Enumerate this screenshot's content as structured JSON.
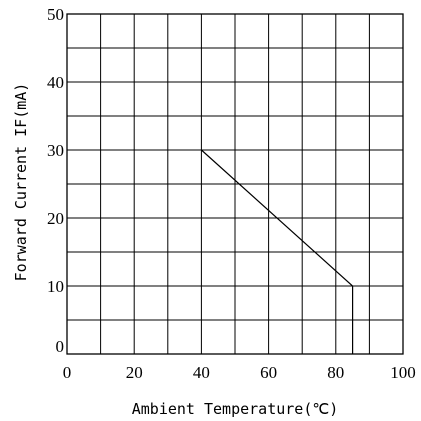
{
  "chart_data": {
    "type": "line",
    "title": "",
    "xlabel": "Ambient Temperature(℃)",
    "ylabel": "Forward Current  IF(mA)",
    "xlim": [
      0,
      100
    ],
    "ylim": [
      0,
      50
    ],
    "x_ticks": [
      0,
      20,
      40,
      60,
      80,
      100
    ],
    "y_ticks": [
      0,
      10,
      20,
      30,
      40,
      50
    ],
    "x_gridlines": [
      0,
      10,
      20,
      30,
      40,
      50,
      60,
      70,
      80,
      90,
      100
    ],
    "y_gridlines": [
      0,
      5,
      10,
      15,
      20,
      25,
      30,
      35,
      40,
      45,
      50
    ],
    "grid": true,
    "legend": "none",
    "series": [
      {
        "x": [
          40,
          85,
          85
        ],
        "y": [
          30,
          10,
          0
        ],
        "color": "#000000"
      }
    ]
  }
}
